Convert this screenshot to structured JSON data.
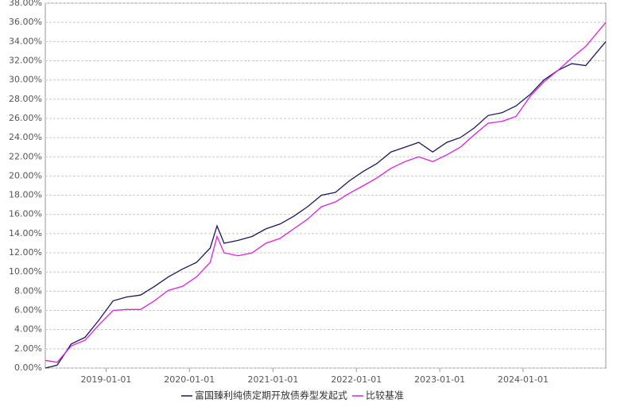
{
  "chart_data": {
    "type": "line",
    "x": [
      "2018-04-10",
      "2018-06-01",
      "2018-08-01",
      "2018-10-01",
      "2018-12-01",
      "2019-02-01",
      "2019-04-01",
      "2019-06-01",
      "2019-08-01",
      "2019-10-01",
      "2019-12-01",
      "2020-02-01",
      "2020-04-01",
      "2020-05-01",
      "2020-06-01",
      "2020-08-01",
      "2020-10-01",
      "2020-12-01",
      "2021-02-01",
      "2021-04-01",
      "2021-06-01",
      "2021-08-01",
      "2021-10-01",
      "2021-12-01",
      "2022-02-01",
      "2022-04-01",
      "2022-06-01",
      "2022-08-01",
      "2022-10-01",
      "2022-12-01",
      "2023-02-01",
      "2023-04-01",
      "2023-06-01",
      "2023-08-01",
      "2023-10-01",
      "2023-12-01",
      "2024-02-01",
      "2024-04-01",
      "2024-06-01",
      "2024-08-01",
      "2024-10-01",
      "2024-12-28"
    ],
    "series": [
      {
        "name": "富国臻利纯债定期开放债券型发起式",
        "color": "#1a1a5a",
        "values": [
          0.0,
          0.3,
          2.5,
          3.2,
          5.0,
          7.0,
          7.4,
          7.6,
          8.5,
          9.5,
          10.3,
          11.0,
          12.5,
          14.8,
          13.0,
          13.3,
          13.7,
          14.5,
          15.0,
          15.8,
          16.8,
          18.0,
          18.3,
          19.5,
          20.5,
          21.3,
          22.5,
          23.0,
          23.5,
          22.5,
          23.5,
          24.0,
          25.0,
          26.3,
          26.6,
          27.3,
          28.5,
          30.0,
          31.0,
          31.7,
          31.5,
          34.0
        ]
      },
      {
        "name": "比较基准",
        "color": "#e020e0",
        "values": [
          0.8,
          0.6,
          2.3,
          2.9,
          4.5,
          6.0,
          6.1,
          6.1,
          7.0,
          8.1,
          8.5,
          9.5,
          11.0,
          13.7,
          12.0,
          11.7,
          12.0,
          13.0,
          13.5,
          14.5,
          15.5,
          16.8,
          17.3,
          18.2,
          19.0,
          19.8,
          20.8,
          21.5,
          22.0,
          21.5,
          22.2,
          23.0,
          24.3,
          25.5,
          25.7,
          26.2,
          28.3,
          29.8,
          31.0,
          32.3,
          33.5,
          36.0
        ]
      }
    ],
    "xlim": [
      "2018-04-10",
      "2024-12-28"
    ],
    "xticks": [
      "2019-01-01",
      "2020-01-01",
      "2021-01-01",
      "2022-01-01",
      "2023-01-01",
      "2024-01-01"
    ],
    "ylim": [
      0,
      38
    ],
    "yticks": [
      {
        "value": 0,
        "label": "0.00%"
      },
      {
        "value": 2,
        "label": "2.00%"
      },
      {
        "value": 4,
        "label": "4.00%"
      },
      {
        "value": 6,
        "label": "6.00%"
      },
      {
        "value": 8,
        "label": "8.00%"
      },
      {
        "value": 10,
        "label": "10.00%"
      },
      {
        "value": 12,
        "label": "12.00%"
      },
      {
        "value": 14,
        "label": "14.00%"
      },
      {
        "value": 16,
        "label": "16.00%"
      },
      {
        "value": 18,
        "label": "18.00%"
      },
      {
        "value": 20,
        "label": "20.00%"
      },
      {
        "value": 22,
        "label": "22.00%"
      },
      {
        "value": 24,
        "label": "24.00%"
      },
      {
        "value": 26,
        "label": "26.00%"
      },
      {
        "value": 28,
        "label": "28.00%"
      },
      {
        "value": 30,
        "label": "30.00%"
      },
      {
        "value": 32,
        "label": "32.00%"
      },
      {
        "value": 34,
        "label": "34.00%"
      },
      {
        "value": 36,
        "label": "36.00%"
      },
      {
        "value": 38,
        "label": "38.00%"
      }
    ],
    "grid": true,
    "legend": "bottom"
  }
}
